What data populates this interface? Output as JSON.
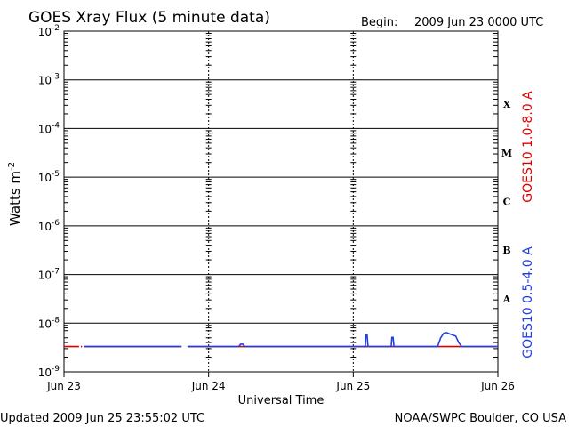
{
  "title": "GOES Xray Flux (5 minute data)",
  "begin_label": "Begin:",
  "begin_value": "2009 Jun 23 0000 UTC",
  "updated": "Updated 2009 Jun 25 23:55:02 UTC",
  "credit": "NOAA/SWPC Boulder, CO USA",
  "colors": {
    "long_channel": "#dd0000",
    "short_channel": "#2040e0",
    "axes": "#000000"
  },
  "chart_data": {
    "type": "line",
    "title": "GOES Xray Flux (5 minute data)",
    "xlabel": "Universal Time",
    "ylabel": "Watts m",
    "ylabel_superscript": "-2",
    "y_scale": "log",
    "ylim": [
      1e-09,
      0.01
    ],
    "xlim": [
      0,
      72
    ],
    "x_ticks": [
      {
        "label": "Jun 23",
        "value": 0
      },
      {
        "label": "Jun 24",
        "value": 24
      },
      {
        "label": "Jun 25",
        "value": 48
      },
      {
        "label": "Jun 26",
        "value": 72
      }
    ],
    "y_ticks": [
      {
        "exp": -2
      },
      {
        "exp": -3
      },
      {
        "exp": -4
      },
      {
        "exp": -5
      },
      {
        "exp": -6
      },
      {
        "exp": -7
      },
      {
        "exp": -8
      },
      {
        "exp": -9
      }
    ],
    "flare_classes": [
      {
        "label": "X",
        "value": 0.0001
      },
      {
        "label": "M",
        "value": 1e-05
      },
      {
        "label": "C",
        "value": 1e-06
      },
      {
        "label": "B",
        "value": 1e-07
      },
      {
        "label": "A",
        "value": 1e-08
      }
    ],
    "grid": true,
    "legend_position": "right",
    "series": [
      {
        "name": "GOES10 1.0-8.0 A",
        "color": "#dd0000",
        "segments": [
          [
            [
              0.0,
              3.3e-09
            ],
            [
              2.5,
              3.3e-09
            ]
          ],
          [
            [
              2.8,
              3.3e-09
            ],
            [
              3.0,
              3.3e-09
            ]
          ],
          [
            [
              3.3,
              3.3e-09
            ],
            [
              19.5,
              3.3e-09
            ]
          ],
          [
            [
              20.5,
              3.3e-09
            ],
            [
              72,
              3.3e-09
            ]
          ]
        ]
      },
      {
        "name": "GOES10 0.5-4.0 A",
        "color": "#2040e0",
        "segments": [
          [
            [
              3.3,
              3.3e-09
            ],
            [
              19.5,
              3.3e-09
            ]
          ],
          [
            [
              20.5,
              3.3e-09
            ],
            [
              29.0,
              3.3e-09
            ],
            [
              29.3,
              3.7e-09
            ],
            [
              29.7,
              3.7e-09
            ],
            [
              30.0,
              3.3e-09
            ],
            [
              50.0,
              3.3e-09
            ],
            [
              50.1,
              5.7e-09
            ],
            [
              50.3,
              5.7e-09
            ],
            [
              50.45,
              3.3e-09
            ],
            [
              54.3,
              3.3e-09
            ],
            [
              54.4,
              5.1e-09
            ],
            [
              54.6,
              5.1e-09
            ],
            [
              54.75,
              3.3e-09
            ],
            [
              62.0,
              3.3e-09
            ],
            [
              62.5,
              5e-09
            ],
            [
              63.0,
              6.2e-09
            ],
            [
              63.5,
              6.4e-09
            ],
            [
              64.0,
              6e-09
            ],
            [
              64.5,
              5.7e-09
            ],
            [
              65.0,
              5.4e-09
            ],
            [
              65.5,
              4e-09
            ],
            [
              66.0,
              3.3e-09
            ],
            [
              72,
              3.3e-09
            ]
          ]
        ]
      }
    ]
  }
}
